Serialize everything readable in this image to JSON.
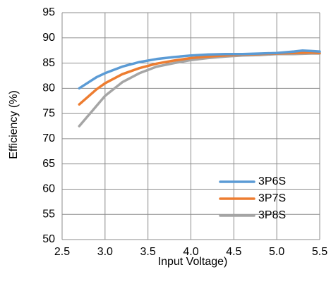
{
  "chart_data": {
    "type": "line",
    "title": "",
    "xlabel": "Input Voltage)",
    "ylabel": "Efficiency (%)",
    "xlim": [
      2.5,
      5.5
    ],
    "ylim": [
      50,
      95
    ],
    "xticks": [
      2.5,
      3.0,
      3.5,
      4.0,
      4.5,
      5.0,
      5.5
    ],
    "xtick_labels": [
      "2.5",
      "3.0",
      "3.5",
      "4.0",
      "4.5",
      "5.0",
      "5.5"
    ],
    "yticks": [
      50,
      55,
      60,
      65,
      70,
      75,
      80,
      85,
      90,
      95
    ],
    "ytick_labels": [
      "50",
      "55",
      "60",
      "65",
      "70",
      "75",
      "80",
      "85",
      "90",
      "95"
    ],
    "grid": true,
    "legend_position": "bottom-right",
    "series": [
      {
        "name": "3P6S",
        "color": "#5B9BD5",
        "x": [
          2.7,
          2.9,
          3.0,
          3.2,
          3.4,
          3.6,
          3.8,
          4.0,
          4.2,
          4.4,
          4.6,
          4.8,
          5.0,
          5.2,
          5.3,
          5.4,
          5.5
        ],
        "y": [
          80.0,
          82.2,
          83.0,
          84.3,
          85.2,
          85.8,
          86.2,
          86.5,
          86.7,
          86.8,
          86.8,
          86.9,
          87.0,
          87.3,
          87.5,
          87.4,
          87.3
        ]
      },
      {
        "name": "3P7S",
        "color": "#ED7D31",
        "x": [
          2.7,
          2.9,
          3.0,
          3.2,
          3.4,
          3.6,
          3.8,
          4.0,
          4.2,
          4.4,
          4.6,
          4.8,
          5.0,
          5.2,
          5.4,
          5.5
        ],
        "y": [
          76.8,
          79.8,
          81.0,
          82.8,
          84.0,
          84.9,
          85.5,
          86.0,
          86.3,
          86.5,
          86.7,
          86.8,
          86.9,
          87.0,
          87.1,
          87.0
        ]
      },
      {
        "name": "3P8S",
        "color": "#A5A5A5",
        "x": [
          2.7,
          2.9,
          3.0,
          3.2,
          3.4,
          3.6,
          3.8,
          4.0,
          4.2,
          4.4,
          4.6,
          4.8,
          5.0,
          5.2,
          5.4,
          5.5
        ],
        "y": [
          72.5,
          76.5,
          78.5,
          81.2,
          83.0,
          84.3,
          85.0,
          85.6,
          86.0,
          86.3,
          86.5,
          86.6,
          86.8,
          86.8,
          86.9,
          86.9
        ]
      }
    ]
  }
}
